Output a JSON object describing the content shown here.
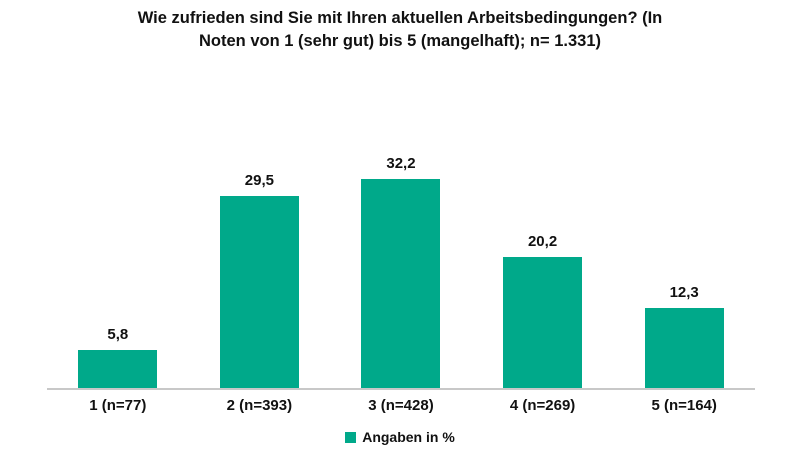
{
  "chart_data": {
    "type": "bar",
    "title": "Wie zufrieden sind Sie mit Ihren aktuellen Arbeitsbedingungen? (In Noten von 1 (sehr gut) bis 5 (mangelhaft); n= 1.331)",
    "title_lines": [
      "Wie zufrieden sind Sie mit Ihren aktuellen Arbeitsbedingungen? (In",
      "Noten von 1 (sehr gut) bis 5 (mangelhaft); n= 1.331)"
    ],
    "categories": [
      "1 (n=77)",
      "2 (n=393)",
      "3 (n=428)",
      "4 (n=269)",
      "5 (n=164)"
    ],
    "values": [
      5.8,
      29.5,
      32.2,
      20.2,
      12.3
    ],
    "value_labels": [
      "5,8",
      "29,5",
      "32,2",
      "20,2",
      "12,3"
    ],
    "xlabel": "",
    "ylabel": "",
    "ylim": [
      0,
      35
    ],
    "grid": false,
    "legend": [
      {
        "label": "Angaben in %",
        "color": "#00a98a"
      }
    ],
    "legend_position": "bottom-center",
    "colors": {
      "bar": "#00a98a",
      "axis": "#c8c8c8",
      "text": "#111111",
      "background": "#ffffff"
    }
  }
}
